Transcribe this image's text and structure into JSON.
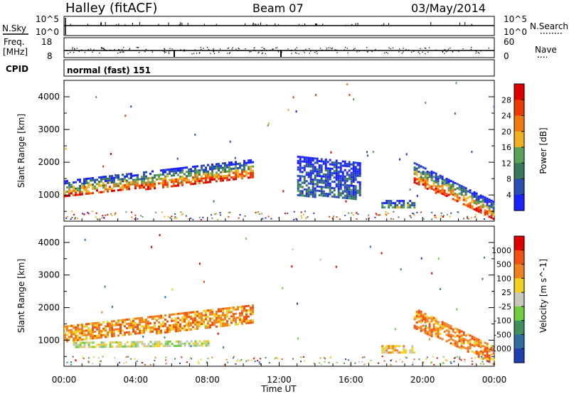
{
  "header": {
    "station": "Halley (fitACF)",
    "beam": "Beam 07",
    "date": "03/May/2014"
  },
  "noise_panel": {
    "left_label": "N.Sky",
    "left_ticks": [
      "10^5",
      "10^0"
    ],
    "right_label": "N.Search",
    "right_ticks": [
      "10^5",
      "10^0"
    ],
    "right_legend_line": "dotted"
  },
  "freq_panel": {
    "left_label_line1": "Freq.",
    "left_label_line2": "[MHz]",
    "left_ticks": [
      "18",
      "8"
    ],
    "right_label": "Nave",
    "right_ticks": [
      "60",
      "0"
    ],
    "right_legend_line": "dotted"
  },
  "cpid_panel": {
    "label": "CPID",
    "value": "normal (fast) 151"
  },
  "time_axis": {
    "xlabel": "Time UT",
    "tick_labels": [
      "00:00",
      "04:00",
      "08:00",
      "12:00",
      "16:00",
      "20:00",
      "00:00"
    ]
  },
  "colors": {
    "power_scale": [
      "#1a23ff",
      "#2b4fb0",
      "#3a7a5a",
      "#5aa25a",
      "#f0b020",
      "#f07a10",
      "#ee3a00",
      "#e00000"
    ],
    "velocity_scale": [
      "#1f3fb0",
      "#2f6f9f",
      "#3f8f5f",
      "#6fcf3f",
      "#c8c8b8",
      "#f0d020",
      "#f08020",
      "#f05010",
      "#e00000"
    ]
  },
  "chart_data": [
    {
      "type": "heatmap",
      "title": "Power",
      "xlabel": "Time UT",
      "ylabel": "Slant Range [km]",
      "y_ticks": [
        "4000",
        "3000",
        "2000",
        "1000"
      ],
      "ylim": [
        200,
        4500
      ],
      "xlim": [
        "00:00",
        "24:00"
      ],
      "colorbar": {
        "label": "Power [dB]",
        "ticks": [
          "28",
          "24",
          "20",
          "16",
          "12",
          "8",
          "4"
        ]
      },
      "features": [
        {
          "start_hr": 0.0,
          "end_hr": 10.5,
          "range_bottom_km_start": 950,
          "range_bottom_km_end": 1550,
          "range_top_km_start": 1450,
          "range_top_km_end": 2100,
          "peak_power_db": 30
        },
        {
          "start_hr": 13.0,
          "end_hr": 16.5,
          "range_bottom_km_start": 1000,
          "range_bottom_km_end": 900,
          "range_top_km_start": 2200,
          "range_top_km_end": 2000,
          "peak_power_db": 6
        },
        {
          "start_hr": 17.7,
          "end_hr": 19.5,
          "range_bottom_km_start": 650,
          "range_bottom_km_end": 650,
          "range_top_km_start": 850,
          "range_top_km_end": 850,
          "peak_power_db": 14
        },
        {
          "start_hr": 19.5,
          "end_hr": 24.0,
          "range_bottom_km_start": 1400,
          "range_bottom_km_end": 250,
          "range_top_km_start": 2000,
          "range_top_km_end": 800,
          "peak_power_db": 30
        }
      ]
    },
    {
      "type": "heatmap",
      "title": "Velocity",
      "xlabel": "Time UT",
      "ylabel": "Slant Range [km]",
      "y_ticks": [
        "4000",
        "3000",
        "2000",
        "1000"
      ],
      "ylim": [
        200,
        4500
      ],
      "xlim": [
        "00:00",
        "24:00"
      ],
      "colorbar": {
        "label": "Velocity [m s^-1]",
        "ticks": [
          "1000",
          "500",
          "100",
          "25",
          "-25",
          "-100",
          "-500",
          "-1000"
        ]
      },
      "features": [
        {
          "start_hr": 0.0,
          "end_hr": 10.5,
          "range_bottom_km_start": 950,
          "range_bottom_km_end": 1550,
          "range_top_km_start": 1450,
          "range_top_km_end": 2100,
          "typical_velocity_ms": -150
        },
        {
          "start_hr": 0.5,
          "end_hr": 8.0,
          "range_bottom_km_start": 800,
          "range_bottom_km_end": 850,
          "range_top_km_start": 950,
          "range_top_km_end": 1000,
          "typical_velocity_ms": 0
        },
        {
          "start_hr": 17.7,
          "end_hr": 19.5,
          "range_bottom_km_start": 650,
          "range_bottom_km_end": 650,
          "range_top_km_start": 850,
          "range_top_km_end": 850,
          "typical_velocity_ms": -60
        },
        {
          "start_hr": 19.5,
          "end_hr": 24.0,
          "range_bottom_km_start": 1400,
          "range_bottom_km_end": 250,
          "range_top_km_start": 2000,
          "range_top_km_end": 800,
          "typical_velocity_ms": -200
        }
      ]
    }
  ]
}
